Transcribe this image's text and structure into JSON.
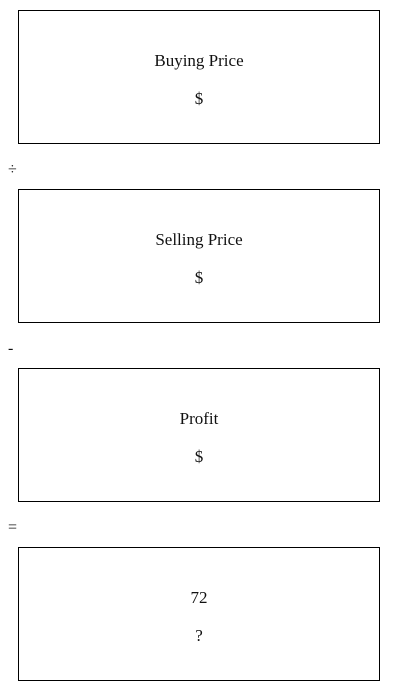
{
  "cards": [
    {
      "title": "Buying Price",
      "value": "$"
    },
    {
      "title": "Selling Price",
      "value": "$"
    },
    {
      "title": "Profit",
      "value": "$"
    },
    {
      "title": "72",
      "value": "?"
    }
  ],
  "operators": [
    "÷",
    "-",
    "="
  ]
}
